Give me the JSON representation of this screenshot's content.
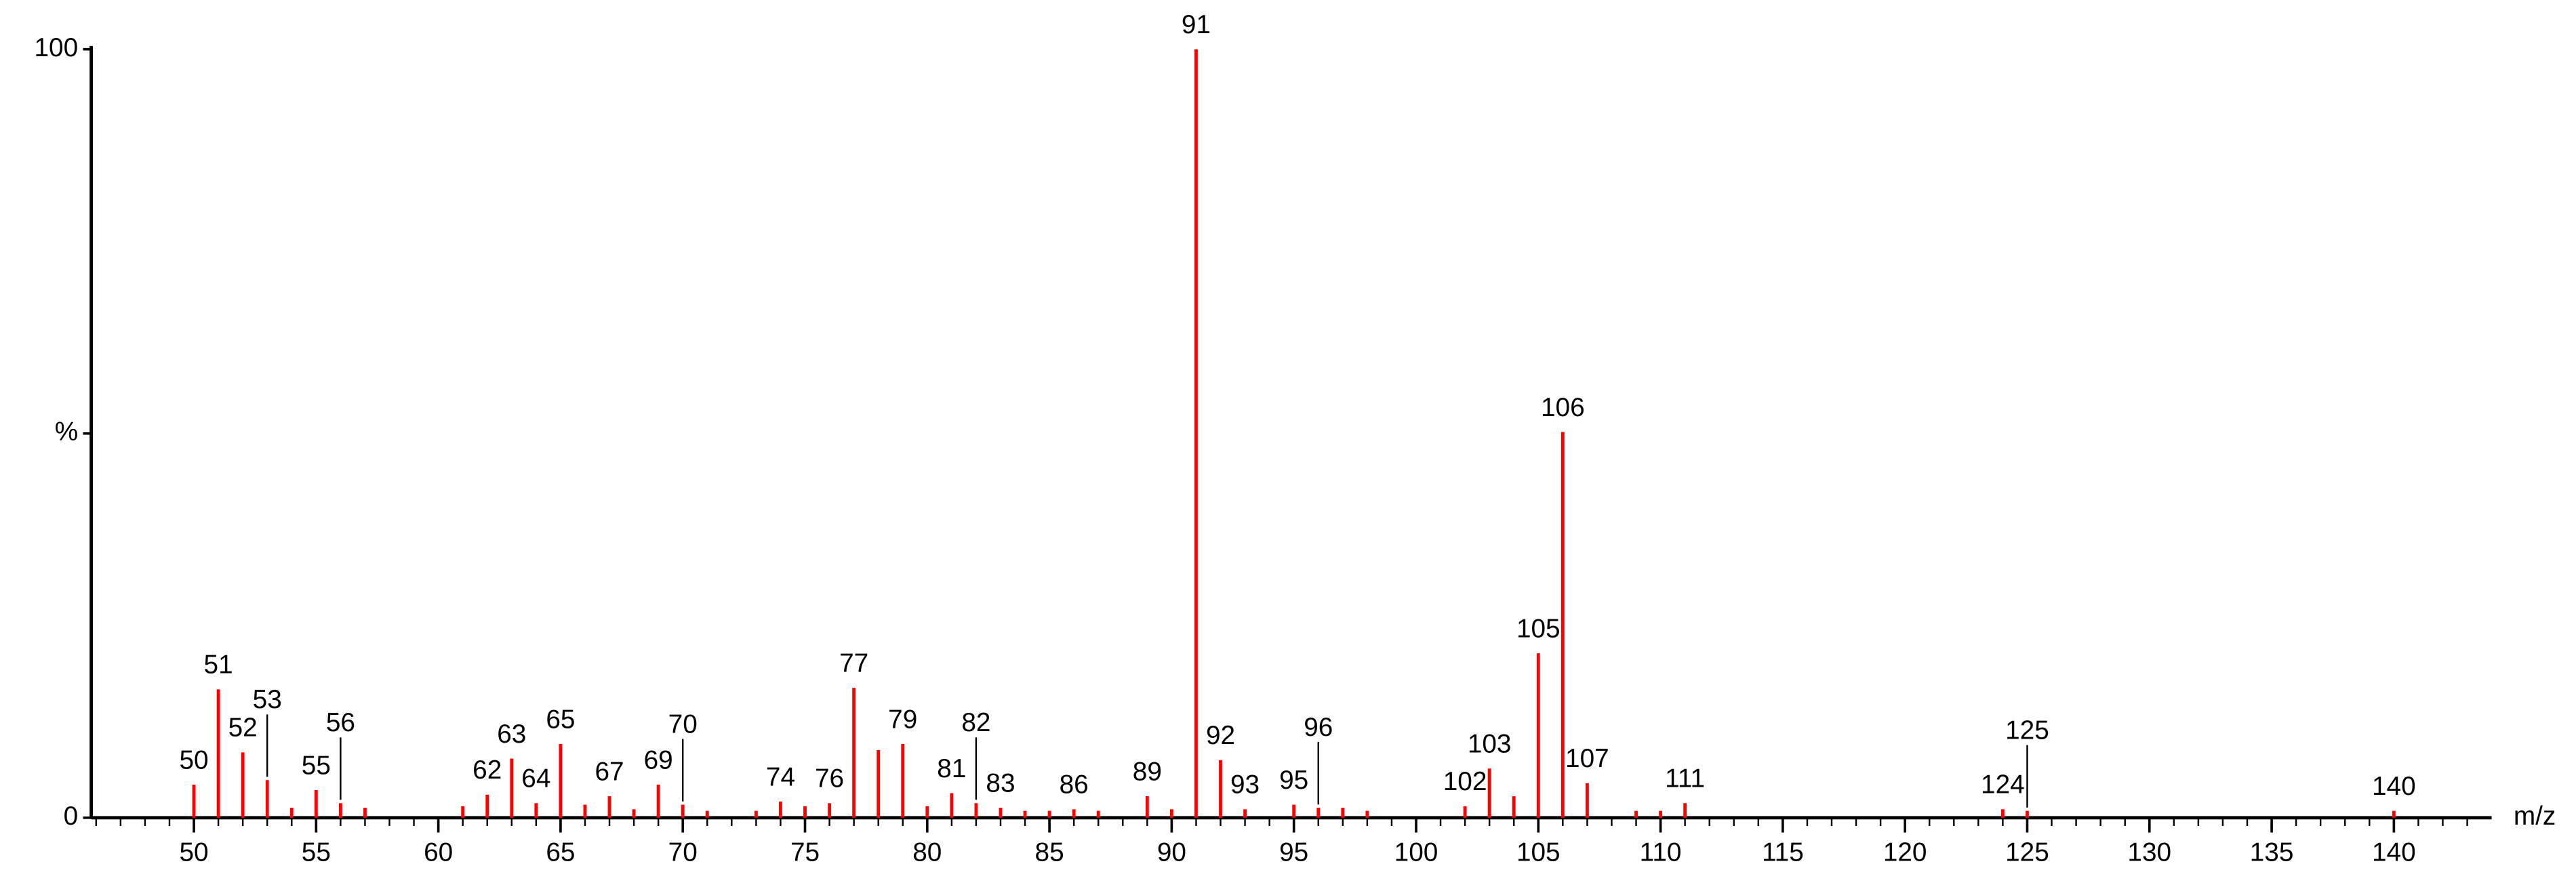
{
  "chart_data": {
    "type": "stick",
    "x": [
      50,
      51,
      52,
      53,
      54,
      55,
      56,
      57,
      61,
      62,
      63,
      64,
      65,
      66,
      67,
      68,
      69,
      70,
      71,
      73,
      74,
      75,
      76,
      77,
      78,
      79,
      80,
      81,
      82,
      83,
      84,
      85,
      86,
      87,
      89,
      90,
      91,
      92,
      93,
      95,
      96,
      97,
      98,
      102,
      103,
      104,
      105,
      106,
      107,
      109,
      110,
      111,
      124,
      125,
      140
    ],
    "values": [
      4.3,
      16.7,
      8.5,
      4.9,
      1.3,
      3.6,
      1.9,
      1.3,
      1.5,
      3.0,
      7.7,
      1.9,
      9.6,
      1.7,
      2.8,
      1.1,
      4.3,
      1.7,
      0.9,
      0.9,
      2.1,
      1.5,
      1.9,
      16.9,
      8.8,
      9.6,
      1.5,
      3.2,
      1.9,
      1.3,
      0.9,
      0.9,
      1.1,
      0.9,
      2.8,
      1.1,
      100,
      7.5,
      1.1,
      1.7,
      1.3,
      1.3,
      0.9,
      1.5,
      6.4,
      2.8,
      21.4,
      50.2,
      4.5,
      0.9,
      0.9,
      1.9,
      1.1,
      0.9,
      0.9
    ],
    "peak_labels": [
      "50",
      "51",
      "52",
      "53",
      null,
      "55",
      "56",
      null,
      null,
      "62",
      "63",
      "64",
      "65",
      null,
      "67",
      null,
      "69",
      "70",
      null,
      null,
      "74",
      null,
      "76",
      "77",
      null,
      "79",
      null,
      "81",
      "82",
      "83",
      null,
      null,
      "86",
      null,
      "89",
      null,
      "91",
      "92",
      "93",
      "95",
      "96",
      null,
      null,
      "102",
      "103",
      null,
      "105",
      "106",
      "107",
      null,
      null,
      "111",
      "124",
      "125",
      "140"
    ],
    "color": "#ff0000",
    "x_label": "m/z",
    "xlim": [
      45.8,
      144
    ],
    "ylim": [
      0,
      100
    ],
    "yticks": [
      0,
      {
        "value": 50,
        "label": "%"
      },
      100
    ],
    "xticks": [
      50,
      55,
      60,
      65,
      70,
      75,
      80,
      85,
      90,
      95,
      100,
      105,
      110,
      115,
      120,
      125,
      130,
      135,
      140
    ],
    "xminorticks": [
      46,
      47,
      48,
      49,
      51,
      52,
      53,
      54,
      56,
      57,
      58,
      59,
      61,
      62,
      63,
      64,
      66,
      67,
      68,
      69,
      71,
      72,
      73,
      74,
      76,
      77,
      78,
      79,
      81,
      82,
      83,
      84,
      86,
      87,
      88,
      89,
      91,
      92,
      93,
      94,
      96,
      97,
      98,
      99,
      101,
      102,
      103,
      104,
      106,
      107,
      108,
      109,
      111,
      112,
      113,
      114,
      116,
      117,
      118,
      119,
      121,
      122,
      123,
      124,
      126,
      127,
      128,
      129,
      131,
      132,
      133,
      134,
      136,
      137,
      138,
      139,
      141,
      142,
      143
    ]
  }
}
